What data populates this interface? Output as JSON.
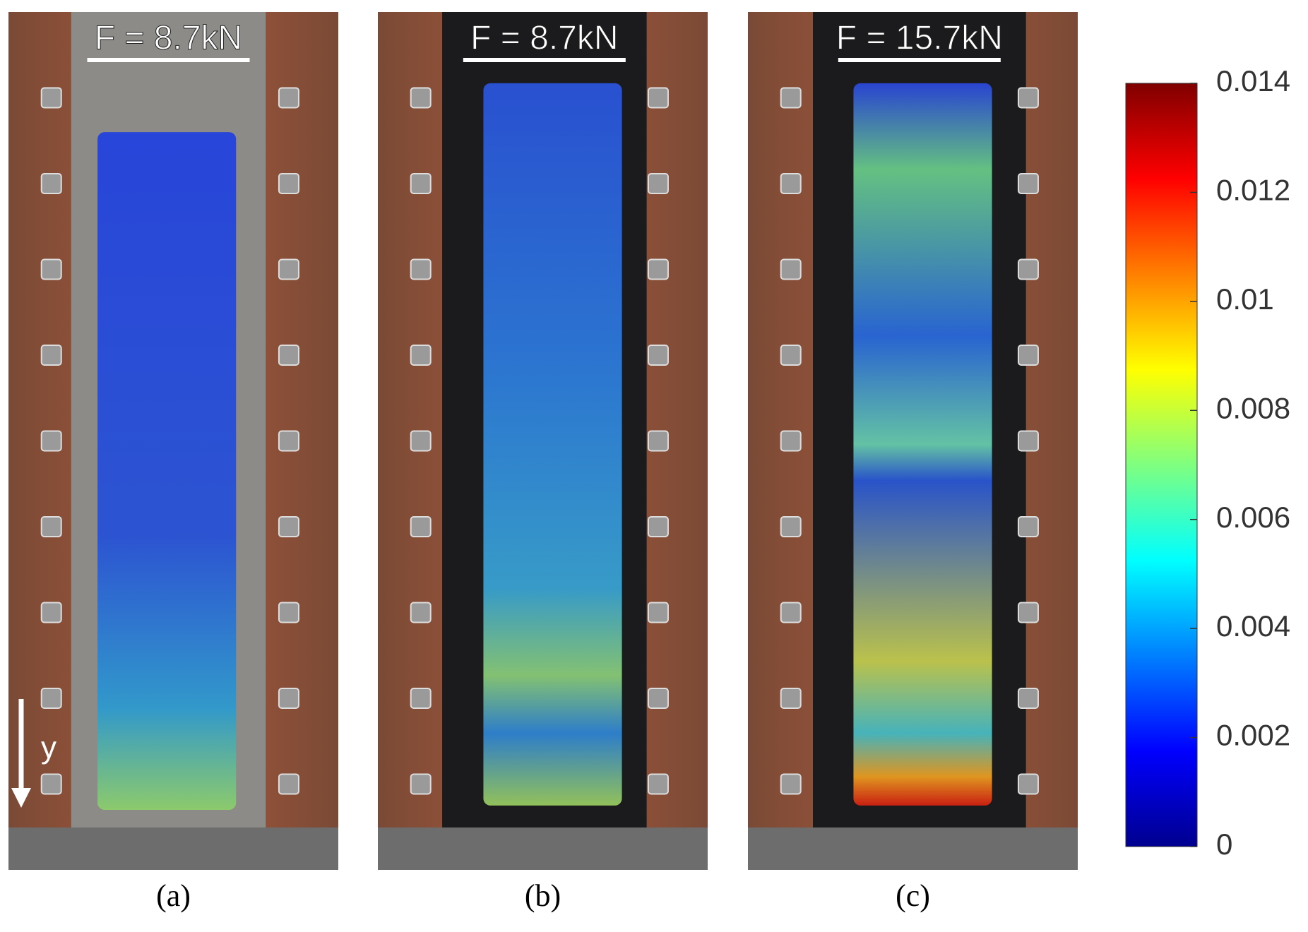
{
  "panels": [
    {
      "force": "F = 8.7kN",
      "label": "(a)"
    },
    {
      "force": "F = 8.7kN",
      "label": "(b)"
    },
    {
      "force": "F = 15.7kN",
      "label": "(c)"
    }
  ],
  "axis_label": "y",
  "colorbar": {
    "range": [
      0,
      0.014
    ],
    "ticks": [
      0,
      0.002,
      0.004,
      0.006,
      0.008,
      0.01,
      0.012,
      0.014
    ]
  }
}
